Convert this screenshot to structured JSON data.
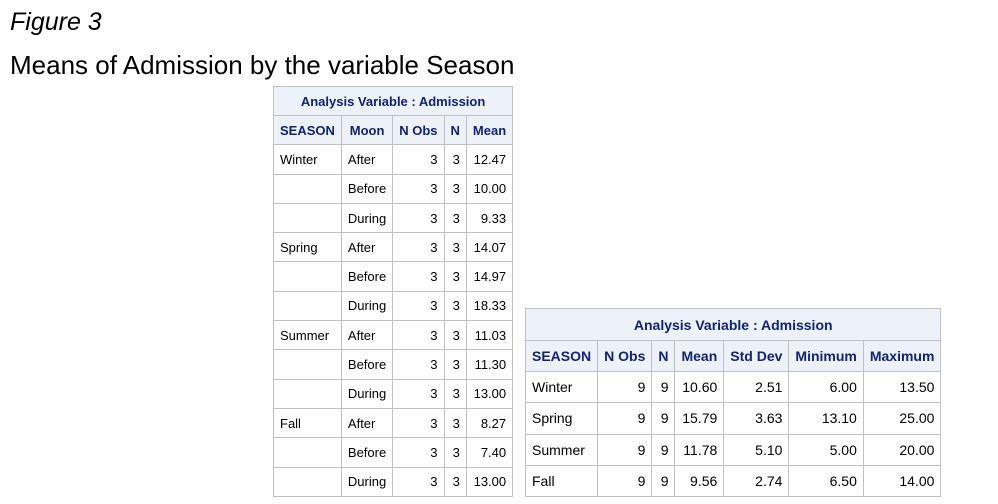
{
  "figure": {
    "label": "Figure 3",
    "title": "Means of Admission by the variable Season"
  },
  "table1": {
    "caption": "Analysis Variable : Admission",
    "headers": [
      "SEASON",
      "Moon",
      "N Obs",
      "N",
      "Mean"
    ],
    "rows": [
      [
        "Winter",
        "After",
        "3",
        "3",
        "12.47"
      ],
      [
        "",
        "Before",
        "3",
        "3",
        "10.00"
      ],
      [
        "",
        "During",
        "3",
        "3",
        "9.33"
      ],
      [
        "Spring",
        "After",
        "3",
        "3",
        "14.07"
      ],
      [
        "",
        "Before",
        "3",
        "3",
        "14.97"
      ],
      [
        "",
        "During",
        "3",
        "3",
        "18.33"
      ],
      [
        "Summer",
        "After",
        "3",
        "3",
        "11.03"
      ],
      [
        "",
        "Before",
        "3",
        "3",
        "11.30"
      ],
      [
        "",
        "During",
        "3",
        "3",
        "13.00"
      ],
      [
        "Fall",
        "After",
        "3",
        "3",
        "8.27"
      ],
      [
        "",
        "Before",
        "3",
        "3",
        "7.40"
      ],
      [
        "",
        "During",
        "3",
        "3",
        "13.00"
      ]
    ]
  },
  "table2": {
    "caption": "Analysis Variable : Admission",
    "headers": [
      "SEASON",
      "N Obs",
      "N",
      "Mean",
      "Std Dev",
      "Minimum",
      "Maximum"
    ],
    "rows": [
      [
        "Winter",
        "9",
        "9",
        "10.60",
        "2.51",
        "6.00",
        "13.50"
      ],
      [
        "Spring",
        "9",
        "9",
        "15.79",
        "3.63",
        "13.10",
        "25.00"
      ],
      [
        "Summer",
        "9",
        "9",
        "11.78",
        "5.10",
        "5.00",
        "20.00"
      ],
      [
        "Fall",
        "9",
        "9",
        "9.56",
        "2.74",
        "6.50",
        "14.00"
      ]
    ]
  },
  "colors": {
    "header_bg": "#edf2f9",
    "header_text": "#112277",
    "border": "#c1c1c1"
  }
}
